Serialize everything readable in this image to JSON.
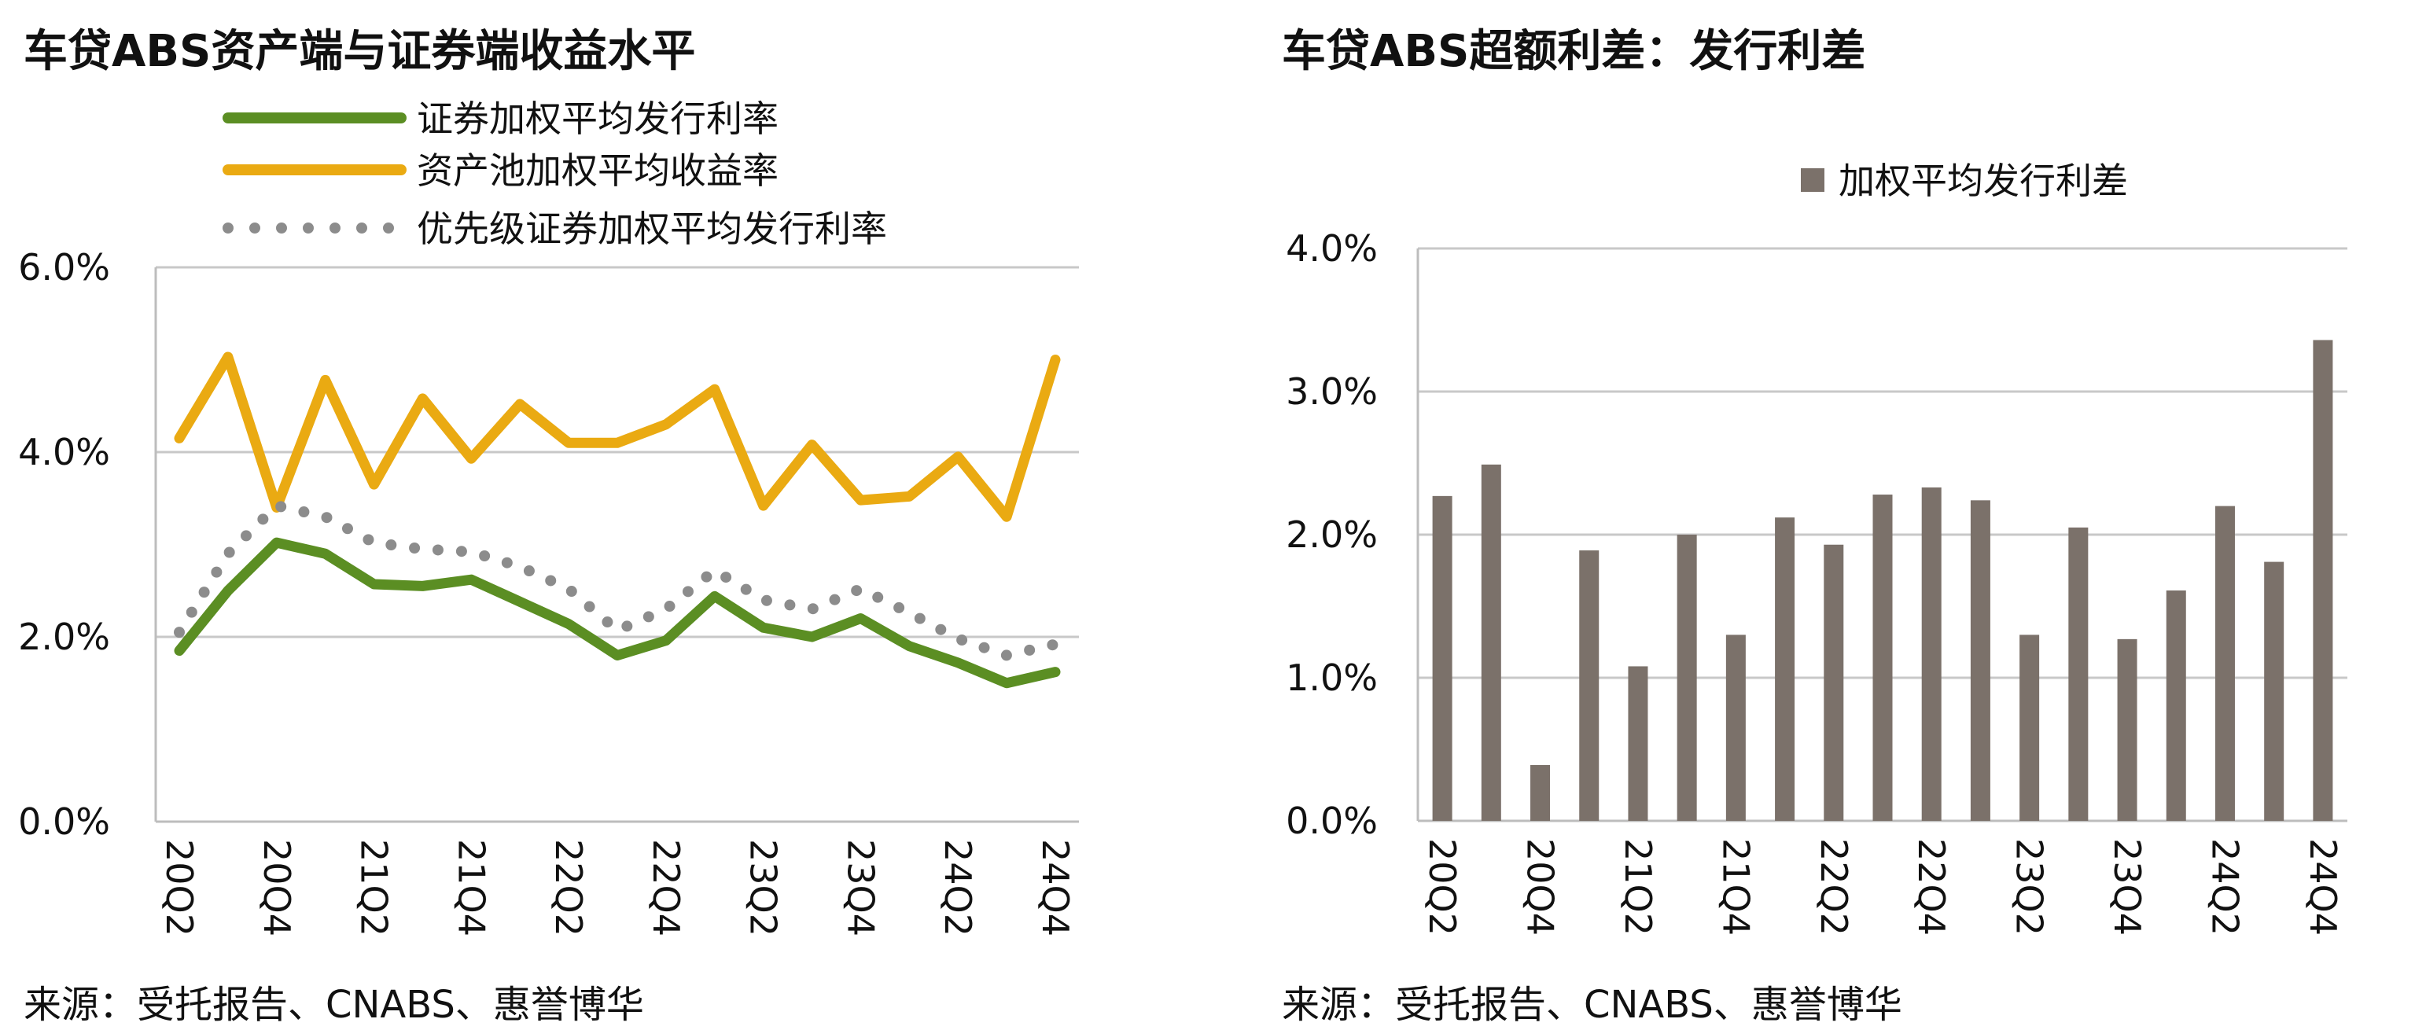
{
  "left": {
    "source": "来源：受托报告、CNABS、惠誉博华",
    "chart_data": {
      "type": "line",
      "title": "车贷ABS资产端与证券端收益水平",
      "categories": [
        "20Q2",
        "20Q3",
        "20Q4",
        "21Q1",
        "21Q2",
        "21Q3",
        "21Q4",
        "22Q1",
        "22Q2",
        "22Q3",
        "22Q4",
        "23Q1",
        "23Q2",
        "23Q3",
        "23Q4",
        "24Q1",
        "24Q2",
        "24Q3",
        "24Q4"
      ],
      "x_tick_labels": [
        "20Q2",
        "20Q4",
        "21Q2",
        "21Q4",
        "22Q2",
        "22Q4",
        "23Q2",
        "23Q4",
        "24Q2",
        "24Q4"
      ],
      "ylim": [
        0,
        6
      ],
      "y_ticks": [
        0,
        2,
        4,
        6
      ],
      "y_tick_labels": [
        "0.0%",
        "2.0%",
        "4.0%",
        "6.0%"
      ],
      "legend_position": "top",
      "series": [
        {
          "name": "证券加权平均发行利率",
          "color": "#5b8e23",
          "style": "solid",
          "values": [
            1.85,
            2.5,
            3.02,
            2.9,
            2.57,
            2.55,
            2.62,
            2.38,
            2.14,
            1.8,
            1.96,
            2.44,
            2.1,
            2.0,
            2.2,
            1.9,
            1.72,
            1.5,
            1.62
          ]
        },
        {
          "name": "资产池加权平均收益率",
          "color": "#eaaa12",
          "style": "solid",
          "values": [
            4.15,
            5.03,
            3.4,
            4.78,
            3.65,
            4.58,
            3.93,
            4.52,
            4.1,
            4.1,
            4.3,
            4.68,
            3.42,
            4.08,
            3.48,
            3.52,
            3.95,
            3.3,
            5.0
          ]
        },
        {
          "name": "优先级证券加权平均发行利率",
          "color": "#8c8c8c",
          "style": "dotted",
          "values": [
            2.05,
            2.9,
            3.42,
            3.3,
            3.02,
            2.95,
            2.92,
            2.76,
            2.52,
            2.07,
            2.3,
            2.72,
            2.4,
            2.3,
            2.52,
            2.26,
            1.98,
            1.8,
            1.92
          ]
        }
      ]
    }
  },
  "right": {
    "source": "来源：受托报告、CNABS、惠誉博华",
    "chart_data": {
      "type": "bar",
      "title": "车贷ABS超额利差：发行利差",
      "categories": [
        "20Q2",
        "20Q3",
        "20Q4",
        "21Q1",
        "21Q2",
        "21Q3",
        "21Q4",
        "22Q1",
        "22Q2",
        "22Q3",
        "22Q4",
        "23Q1",
        "23Q2",
        "23Q3",
        "23Q4",
        "24Q1",
        "24Q2",
        "24Q3",
        "24Q4"
      ],
      "x_tick_labels": [
        "20Q2",
        "20Q4",
        "21Q2",
        "21Q4",
        "22Q2",
        "22Q4",
        "23Q2",
        "23Q4",
        "24Q2",
        "24Q4"
      ],
      "ylim": [
        0,
        4
      ],
      "y_ticks": [
        0,
        1,
        2,
        3,
        4
      ],
      "y_tick_labels": [
        "0.0%",
        "1.0%",
        "2.0%",
        "3.0%",
        "4.0%"
      ],
      "legend_position": "top",
      "series": [
        {
          "name": "加权平均发行利差",
          "color": "#7b716a",
          "values": [
            2.27,
            2.49,
            0.39,
            1.89,
            1.08,
            2.0,
            1.3,
            2.12,
            1.93,
            2.28,
            2.33,
            2.24,
            1.3,
            2.05,
            1.27,
            1.61,
            2.2,
            1.81,
            3.36
          ]
        }
      ]
    }
  }
}
